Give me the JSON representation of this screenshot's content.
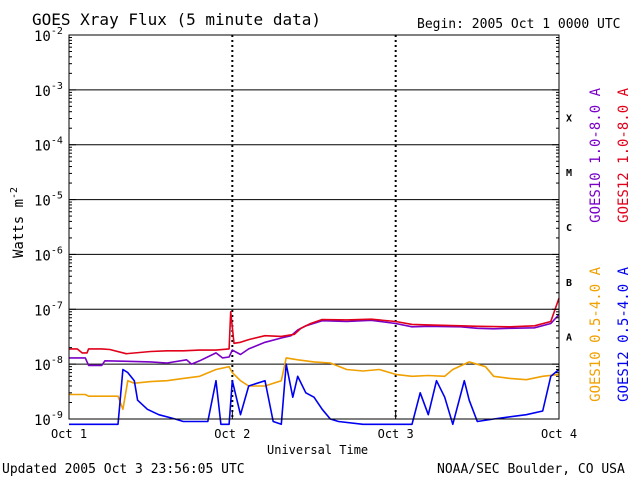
{
  "page": {
    "title": "GOES Xray Flux (5 minute data)",
    "begin": "Begin:  2005 Oct 1 0000 UTC",
    "updated": "Updated 2005 Oct  3 23:56:05 UTC",
    "credit": "NOAA/SEC Boulder, CO USA"
  },
  "chart_data": {
    "type": "line",
    "title": "GOES Xray Flux (5 minute data)",
    "xlabel": "Universal Time",
    "ylabel": "Watts m",
    "ylabel_superscript": "-2",
    "y_scale": "log",
    "ylim": [
      1e-09,
      0.01
    ],
    "xlim_days": [
      0,
      3
    ],
    "x_ticks": [
      {
        "day": 0,
        "label": "Oct 1"
      },
      {
        "day": 1,
        "label": "Oct 2"
      },
      {
        "day": 2,
        "label": "Oct 3"
      },
      {
        "day": 3,
        "label": "Oct 4"
      }
    ],
    "y_ticks": [
      {
        "exp": -9,
        "label": "-9"
      },
      {
        "exp": -8,
        "label": "-8"
      },
      {
        "exp": -7,
        "label": "-7"
      },
      {
        "exp": -6,
        "label": "-6"
      },
      {
        "exp": -5,
        "label": "-5"
      },
      {
        "exp": -4,
        "label": "-4"
      },
      {
        "exp": -3,
        "label": "-3"
      },
      {
        "exp": -2,
        "label": "-2"
      }
    ],
    "flare_classes": [
      {
        "label": "A",
        "exp": -7.5
      },
      {
        "label": "B",
        "exp": -6.5
      },
      {
        "label": "C",
        "exp": -5.5
      },
      {
        "label": "M",
        "exp": -4.5
      },
      {
        "label": "X",
        "exp": -3.5
      }
    ],
    "grid": "horizontal lines at each decade from 1e-8 to 1e-3; dotted vertical lines at day boundaries",
    "legend_placement": "right, vertical text",
    "series": [
      {
        "name": "GOES10 1.0-8.0 A",
        "color": "#7a00c8",
        "points": [
          [
            0.0,
            1.3e-08
          ],
          [
            0.1,
            1.3e-08
          ],
          [
            0.12,
            9.5e-09
          ],
          [
            0.2,
            9.5e-09
          ],
          [
            0.22,
            1.15e-08
          ],
          [
            0.5,
            1.1e-08
          ],
          [
            0.6,
            1.05e-08
          ],
          [
            0.72,
            1.2e-08
          ],
          [
            0.75,
            1e-08
          ],
          [
            0.8,
            1.15e-08
          ],
          [
            0.9,
            1.6e-08
          ],
          [
            0.94,
            1.3e-08
          ],
          [
            0.98,
            1.35e-08
          ],
          [
            1.0,
            1.8e-08
          ],
          [
            1.05,
            1.5e-08
          ],
          [
            1.1,
            1.9e-08
          ],
          [
            1.2,
            2.5e-08
          ],
          [
            1.3,
            3e-08
          ],
          [
            1.36,
            3.3e-08
          ],
          [
            1.4,
            4.2e-08
          ],
          [
            1.45,
            5e-08
          ],
          [
            1.55,
            6.2e-08
          ],
          [
            1.7,
            6e-08
          ],
          [
            1.85,
            6.3e-08
          ],
          [
            2.0,
            5.5e-08
          ],
          [
            2.1,
            4.8e-08
          ],
          [
            2.2,
            4.9e-08
          ],
          [
            2.4,
            4.8e-08
          ],
          [
            2.5,
            4.5e-08
          ],
          [
            2.6,
            4.4e-08
          ],
          [
            2.7,
            4.5e-08
          ],
          [
            2.85,
            4.6e-08
          ],
          [
            2.95,
            5.5e-08
          ],
          [
            3.0,
            8e-08
          ]
        ]
      },
      {
        "name": "GOES12 1.0-8.0 A",
        "color": "#e0001a",
        "points": [
          [
            0.0,
            1.9e-08
          ],
          [
            0.05,
            1.9e-08
          ],
          [
            0.08,
            1.6e-08
          ],
          [
            0.11,
            1.6e-08
          ],
          [
            0.12,
            1.9e-08
          ],
          [
            0.2,
            1.9e-08
          ],
          [
            0.25,
            1.85e-08
          ],
          [
            0.35,
            1.55e-08
          ],
          [
            0.5,
            1.7e-08
          ],
          [
            0.6,
            1.75e-08
          ],
          [
            0.7,
            1.75e-08
          ],
          [
            0.8,
            1.8e-08
          ],
          [
            0.9,
            1.8e-08
          ],
          [
            0.98,
            1.9e-08
          ],
          [
            0.99,
            9e-08
          ],
          [
            1.01,
            2.4e-08
          ],
          [
            1.05,
            2.5e-08
          ],
          [
            1.1,
            2.8e-08
          ],
          [
            1.2,
            3.3e-08
          ],
          [
            1.3,
            3.2e-08
          ],
          [
            1.38,
            3.5e-08
          ],
          [
            1.42,
            4.5e-08
          ],
          [
            1.48,
            5.5e-08
          ],
          [
            1.55,
            6.5e-08
          ],
          [
            1.7,
            6.4e-08
          ],
          [
            1.85,
            6.6e-08
          ],
          [
            2.0,
            6e-08
          ],
          [
            2.1,
            5.3e-08
          ],
          [
            2.2,
            5.2e-08
          ],
          [
            2.4,
            5e-08
          ],
          [
            2.5,
            4.9e-08
          ],
          [
            2.7,
            4.8e-08
          ],
          [
            2.85,
            5e-08
          ],
          [
            2.95,
            6e-08
          ],
          [
            3.0,
            1.6e-07
          ]
        ]
      },
      {
        "name": "GOES10 0.5-4.0 A",
        "color": "#f0a000",
        "points": [
          [
            0.0,
            2.8e-09
          ],
          [
            0.1,
            2.8e-09
          ],
          [
            0.12,
            2.6e-09
          ],
          [
            0.3,
            2.6e-09
          ],
          [
            0.33,
            1.5e-09
          ],
          [
            0.36,
            5e-09
          ],
          [
            0.4,
            4.5e-09
          ],
          [
            0.5,
            4.8e-09
          ],
          [
            0.6,
            5e-09
          ],
          [
            0.7,
            5.5e-09
          ],
          [
            0.8,
            6e-09
          ],
          [
            0.9,
            8e-09
          ],
          [
            0.98,
            9e-09
          ],
          [
            1.0,
            7e-09
          ],
          [
            1.05,
            5e-09
          ],
          [
            1.1,
            4e-09
          ],
          [
            1.2,
            4e-09
          ],
          [
            1.3,
            5e-09
          ],
          [
            1.33,
            1.3e-08
          ],
          [
            1.4,
            1.2e-08
          ],
          [
            1.5,
            1.1e-08
          ],
          [
            1.6,
            1.05e-08
          ],
          [
            1.7,
            8e-09
          ],
          [
            1.8,
            7.5e-09
          ],
          [
            1.9,
            8e-09
          ],
          [
            2.0,
            6.5e-09
          ],
          [
            2.1,
            6e-09
          ],
          [
            2.2,
            6.2e-09
          ],
          [
            2.3,
            6e-09
          ],
          [
            2.35,
            8e-09
          ],
          [
            2.45,
            1.1e-08
          ],
          [
            2.55,
            9e-09
          ],
          [
            2.6,
            6e-09
          ],
          [
            2.7,
            5.5e-09
          ],
          [
            2.8,
            5.2e-09
          ],
          [
            2.9,
            6e-09
          ],
          [
            3.0,
            6.5e-09
          ]
        ]
      },
      {
        "name": "GOES12 0.5-4.0 A",
        "color": "#0000f0",
        "points": [
          [
            0.0,
            8e-10
          ],
          [
            0.3,
            8e-10
          ],
          [
            0.33,
            8e-09
          ],
          [
            0.36,
            7e-09
          ],
          [
            0.4,
            5e-09
          ],
          [
            0.42,
            2.2e-09
          ],
          [
            0.48,
            1.5e-09
          ],
          [
            0.55,
            1.2e-09
          ],
          [
            0.65,
            1e-09
          ],
          [
            0.7,
            9e-10
          ],
          [
            0.85,
            9e-10
          ],
          [
            0.9,
            5e-09
          ],
          [
            0.93,
            8e-10
          ],
          [
            0.98,
            8e-10
          ],
          [
            1.0,
            5e-09
          ],
          [
            1.05,
            1.2e-09
          ],
          [
            1.1,
            4e-09
          ],
          [
            1.2,
            5e-09
          ],
          [
            1.25,
            9e-10
          ],
          [
            1.3,
            8e-10
          ],
          [
            1.33,
            1e-08
          ],
          [
            1.37,
            2.5e-09
          ],
          [
            1.4,
            6e-09
          ],
          [
            1.45,
            3e-09
          ],
          [
            1.5,
            2.5e-09
          ],
          [
            1.55,
            1.5e-09
          ],
          [
            1.6,
            1e-09
          ],
          [
            1.65,
            9e-10
          ],
          [
            1.8,
            8e-10
          ],
          [
            1.95,
            8e-10
          ],
          [
            2.0,
            8e-10
          ],
          [
            2.1,
            8e-10
          ],
          [
            2.15,
            3e-09
          ],
          [
            2.2,
            1.2e-09
          ],
          [
            2.25,
            5e-09
          ],
          [
            2.3,
            2.5e-09
          ],
          [
            2.35,
            8e-10
          ],
          [
            2.42,
            5e-09
          ],
          [
            2.45,
            2.2e-09
          ],
          [
            2.5,
            9e-10
          ],
          [
            2.6,
            1e-09
          ],
          [
            2.8,
            1.2e-09
          ],
          [
            2.9,
            1.4e-09
          ],
          [
            2.95,
            6e-09
          ],
          [
            3.0,
            8e-09
          ]
        ]
      }
    ]
  }
}
